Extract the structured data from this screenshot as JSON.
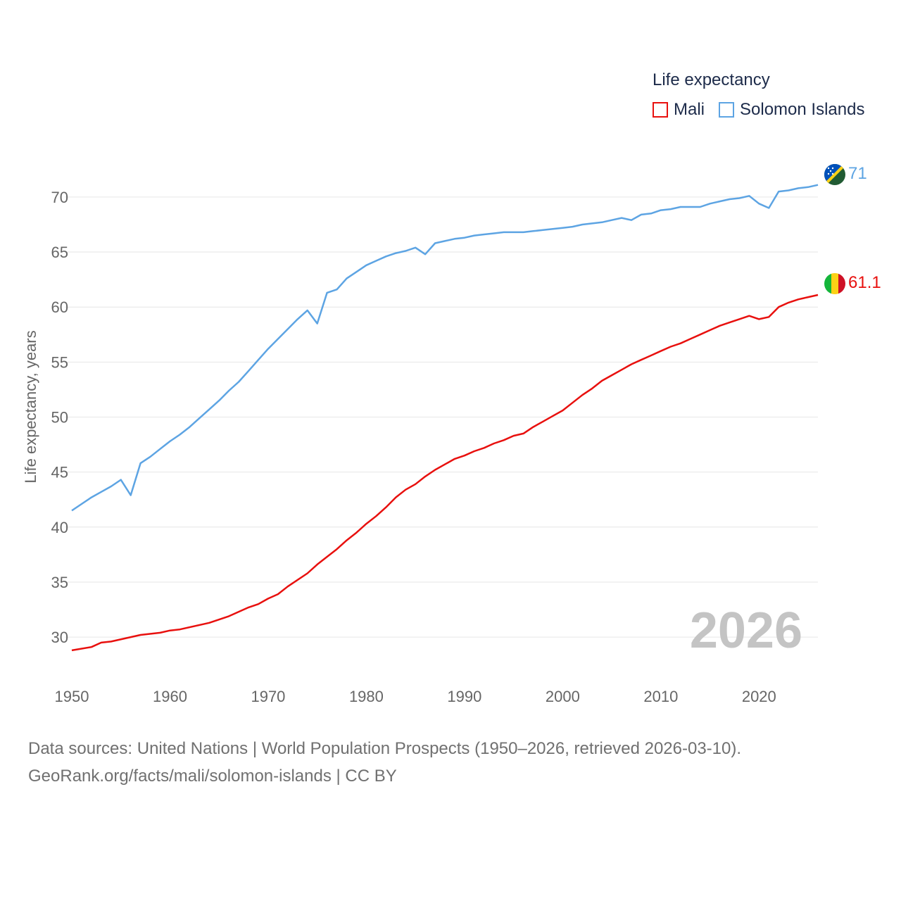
{
  "legend": {
    "title": "Life expectancy",
    "items": [
      {
        "label": "Mali",
        "color": "#e8100e"
      },
      {
        "label": "Solomon Islands",
        "color": "#5da4e3"
      }
    ]
  },
  "year_watermark": "2026",
  "footer": {
    "line1": "Data sources: United Nations | World Population Prospects (1950–2026, retrieved 2026-03-10).",
    "line2": "GeoRank.org/facts/mali/solomon-islands | CC BY"
  },
  "chart_data": {
    "type": "line",
    "title": "Life expectancy",
    "xlabel": "",
    "ylabel": "Life expectancy, years",
    "xlim": [
      1950,
      2026
    ],
    "ylim": [
      27,
      73
    ],
    "x_ticks": [
      1950,
      1960,
      1970,
      1980,
      1990,
      2000,
      2010,
      2020
    ],
    "y_ticks": [
      30,
      35,
      40,
      45,
      50,
      55,
      60,
      65,
      70
    ],
    "grid": true,
    "legend_position": "top-right",
    "series": [
      {
        "name": "Mali",
        "color": "#e8100e",
        "end_label": "61.1",
        "points": [
          [
            1950,
            28.8
          ],
          [
            1952,
            29.1
          ],
          [
            1953,
            29.5
          ],
          [
            1954,
            29.6
          ],
          [
            1956,
            30.0
          ],
          [
            1957,
            30.2
          ],
          [
            1959,
            30.4
          ],
          [
            1960,
            30.6
          ],
          [
            1961,
            30.7
          ],
          [
            1964,
            31.3
          ],
          [
            1966,
            31.9
          ],
          [
            1968,
            32.7
          ],
          [
            1969,
            33.0
          ],
          [
            1970,
            33.5
          ],
          [
            1971,
            33.9
          ],
          [
            1972,
            34.6
          ],
          [
            1974,
            35.8
          ],
          [
            1975,
            36.6
          ],
          [
            1976,
            37.3
          ],
          [
            1977,
            38.0
          ],
          [
            1978,
            38.8
          ],
          [
            1979,
            39.5
          ],
          [
            1980,
            40.3
          ],
          [
            1981,
            41.0
          ],
          [
            1982,
            41.8
          ],
          [
            1983,
            42.7
          ],
          [
            1984,
            43.4
          ],
          [
            1985,
            43.9
          ],
          [
            1986,
            44.6
          ],
          [
            1987,
            45.2
          ],
          [
            1988,
            45.7
          ],
          [
            1989,
            46.2
          ],
          [
            1990,
            46.5
          ],
          [
            1991,
            46.9
          ],
          [
            1992,
            47.2
          ],
          [
            1993,
            47.6
          ],
          [
            1994,
            47.9
          ],
          [
            1995,
            48.3
          ],
          [
            1996,
            48.5
          ],
          [
            1997,
            49.1
          ],
          [
            1998,
            49.6
          ],
          [
            1999,
            50.1
          ],
          [
            2000,
            50.6
          ],
          [
            2001,
            51.3
          ],
          [
            2002,
            52.0
          ],
          [
            2003,
            52.6
          ],
          [
            2004,
            53.3
          ],
          [
            2005,
            53.8
          ],
          [
            2006,
            54.3
          ],
          [
            2007,
            54.8
          ],
          [
            2008,
            55.2
          ],
          [
            2009,
            55.6
          ],
          [
            2010,
            56.0
          ],
          [
            2011,
            56.4
          ],
          [
            2012,
            56.7
          ],
          [
            2013,
            57.1
          ],
          [
            2014,
            57.5
          ],
          [
            2015,
            57.9
          ],
          [
            2016,
            58.3
          ],
          [
            2017,
            58.6
          ],
          [
            2018,
            58.9
          ],
          [
            2019,
            59.2
          ],
          [
            2020,
            58.9
          ],
          [
            2021,
            59.1
          ],
          [
            2022,
            60.0
          ],
          [
            2023,
            60.4
          ],
          [
            2024,
            60.7
          ],
          [
            2025,
            60.9
          ],
          [
            2026,
            61.1
          ]
        ]
      },
      {
        "name": "Solomon Islands",
        "color": "#5da4e3",
        "end_label": "71",
        "points": [
          [
            1950,
            41.5
          ],
          [
            1951,
            42.1
          ],
          [
            1952,
            42.7
          ],
          [
            1953,
            43.2
          ],
          [
            1954,
            43.7
          ],
          [
            1955,
            44.3
          ],
          [
            1956,
            42.9
          ],
          [
            1957,
            45.8
          ],
          [
            1958,
            46.4
          ],
          [
            1959,
            47.1
          ],
          [
            1960,
            47.8
          ],
          [
            1961,
            48.4
          ],
          [
            1962,
            49.1
          ],
          [
            1963,
            49.9
          ],
          [
            1964,
            50.7
          ],
          [
            1965,
            51.5
          ],
          [
            1966,
            52.4
          ],
          [
            1967,
            53.2
          ],
          [
            1968,
            54.2
          ],
          [
            1969,
            55.2
          ],
          [
            1970,
            56.2
          ],
          [
            1971,
            57.1
          ],
          [
            1972,
            58.0
          ],
          [
            1973,
            58.9
          ],
          [
            1974,
            59.7
          ],
          [
            1975,
            58.5
          ],
          [
            1976,
            61.3
          ],
          [
            1977,
            61.6
          ],
          [
            1978,
            62.6
          ],
          [
            1979,
            63.2
          ],
          [
            1980,
            63.8
          ],
          [
            1981,
            64.2
          ],
          [
            1982,
            64.6
          ],
          [
            1983,
            64.9
          ],
          [
            1984,
            65.1
          ],
          [
            1985,
            65.4
          ],
          [
            1986,
            64.8
          ],
          [
            1987,
            65.8
          ],
          [
            1988,
            66.0
          ],
          [
            1989,
            66.2
          ],
          [
            1990,
            66.3
          ],
          [
            1991,
            66.5
          ],
          [
            1992,
            66.6
          ],
          [
            1993,
            66.7
          ],
          [
            1994,
            66.8
          ],
          [
            1995,
            66.8
          ],
          [
            1996,
            66.8
          ],
          [
            1997,
            66.9
          ],
          [
            1998,
            67.0
          ],
          [
            1999,
            67.1
          ],
          [
            2000,
            67.2
          ],
          [
            2001,
            67.3
          ],
          [
            2002,
            67.5
          ],
          [
            2003,
            67.6
          ],
          [
            2004,
            67.7
          ],
          [
            2005,
            67.9
          ],
          [
            2006,
            68.1
          ],
          [
            2007,
            67.9
          ],
          [
            2008,
            68.4
          ],
          [
            2009,
            68.5
          ],
          [
            2010,
            68.8
          ],
          [
            2011,
            68.9
          ],
          [
            2012,
            69.1
          ],
          [
            2013,
            69.1
          ],
          [
            2014,
            69.1
          ],
          [
            2015,
            69.4
          ],
          [
            2016,
            69.6
          ],
          [
            2017,
            69.8
          ],
          [
            2018,
            69.9
          ],
          [
            2019,
            70.1
          ],
          [
            2020,
            69.4
          ],
          [
            2021,
            69.0
          ],
          [
            2022,
            70.5
          ],
          [
            2023,
            70.6
          ],
          [
            2024,
            70.8
          ],
          [
            2025,
            70.9
          ],
          [
            2026,
            71.1
          ]
        ]
      }
    ]
  }
}
